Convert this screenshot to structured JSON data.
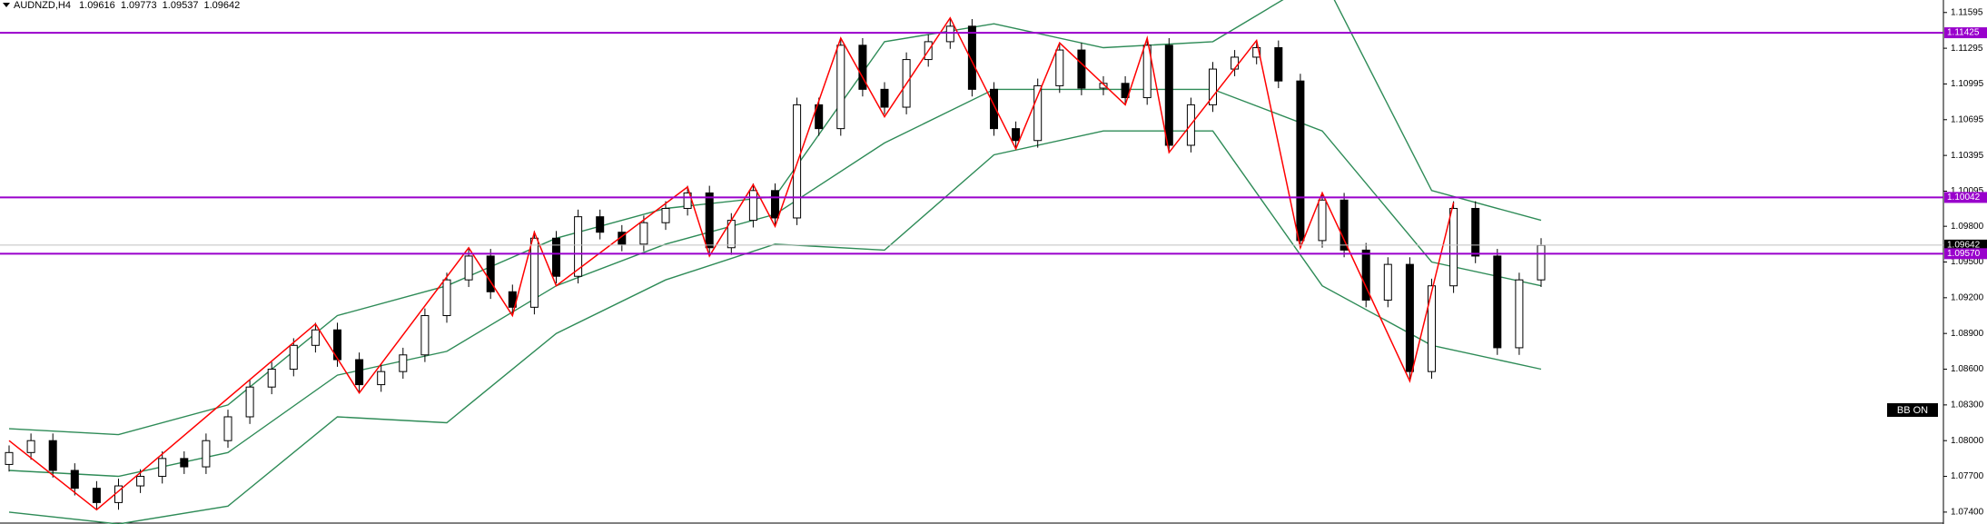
{
  "header": {
    "symbol": "AUDNZD,H4",
    "open": 1.09616,
    "high": 1.09773,
    "low": 1.09537,
    "close": 1.09642
  },
  "chart_data": {
    "type": "candlestick",
    "ylim": [
      1.073,
      1.117
    ],
    "yticks": [
      1.11595,
      1.11295,
      1.10995,
      1.10695,
      1.10395,
      1.10095,
      {
        "value": 1.098,
        "label": "1.09800"
      },
      {
        "value": 1.095,
        "label": "1.09500"
      },
      {
        "value": 1.092,
        "label": "1.09200"
      },
      {
        "value": 1.089,
        "label": "1.08900"
      },
      {
        "value": 1.086,
        "label": "1.08600"
      },
      {
        "value": 1.083,
        "label": "1.08300"
      },
      {
        "value": 1.08,
        "label": "1.08000"
      },
      {
        "value": 1.077,
        "label": "1.07700"
      },
      {
        "value": 1.074,
        "label": "1.07400"
      }
    ],
    "open": [
      1.078,
      1.079,
      1.08,
      1.0775,
      1.076,
      1.0748,
      1.0762,
      1.077,
      1.0785,
      1.0778,
      1.08,
      1.082,
      1.0845,
      1.086,
      1.088,
      1.0893,
      1.0868,
      1.0847,
      1.0858,
      1.0872,
      1.0905,
      1.0935,
      1.0955,
      1.0925,
      1.0912,
      1.097,
      1.0938,
      1.0988,
      1.0975,
      1.0965,
      1.0983,
      1.0995,
      1.1008,
      1.0962,
      1.0985,
      1.101,
      1.0987,
      1.1082,
      1.1062,
      1.1132,
      1.1095,
      1.108,
      1.112,
      1.1135,
      1.1148,
      1.1095,
      1.1062,
      1.1052,
      1.1098,
      1.1128,
      1.1096,
      1.11,
      1.1088,
      1.1132,
      1.1048,
      1.1082,
      1.1112,
      1.1122,
      1.113,
      1.1102,
      1.0968,
      1.1002,
      1.096,
      1.0918,
      1.0948,
      1.0858,
      1.093,
      1.0995,
      1.0955,
      1.0878,
      1.0935
    ],
    "high": [
      1.0796,
      1.0806,
      1.0806,
      1.0781,
      1.0766,
      1.0768,
      1.0776,
      1.0791,
      1.0791,
      1.0806,
      1.0826,
      1.0851,
      1.0866,
      1.0886,
      1.0899,
      1.0899,
      1.0874,
      1.0864,
      1.0878,
      1.0911,
      1.0941,
      1.0961,
      1.0961,
      1.0931,
      1.0976,
      1.0976,
      1.0994,
      1.0994,
      1.0981,
      1.0989,
      1.1001,
      1.1014,
      1.1014,
      1.0991,
      1.1016,
      1.1016,
      1.1088,
      1.1088,
      1.1138,
      1.1138,
      1.1101,
      1.1126,
      1.1141,
      1.1154,
      1.1154,
      1.1101,
      1.1068,
      1.1104,
      1.1134,
      1.1134,
      1.1106,
      1.1106,
      1.1138,
      1.1138,
      1.1088,
      1.1118,
      1.1128,
      1.1136,
      1.1136,
      1.1108,
      1.1008,
      1.1008,
      1.0966,
      1.0954,
      1.0954,
      1.0936,
      1.1001,
      1.1001,
      1.0961,
      1.0941,
      1.097
    ],
    "low": [
      1.0774,
      1.0784,
      1.0769,
      1.0754,
      1.0742,
      1.0742,
      1.0756,
      1.0764,
      1.0772,
      1.0772,
      1.0794,
      1.0814,
      1.0839,
      1.0854,
      1.0874,
      1.0862,
      1.0841,
      1.0841,
      1.0852,
      1.0866,
      1.0899,
      1.0929,
      1.0919,
      1.0906,
      1.0906,
      1.0932,
      1.0932,
      1.0969,
      1.0959,
      1.0959,
      1.0977,
      1.0989,
      1.0956,
      1.0956,
      1.0979,
      1.0981,
      1.0981,
      1.1056,
      1.1056,
      1.1089,
      1.1074,
      1.1074,
      1.1114,
      1.1129,
      1.1089,
      1.1056,
      1.1046,
      1.1046,
      1.1092,
      1.109,
      1.109,
      1.1082,
      1.1082,
      1.1042,
      1.1042,
      1.1076,
      1.1106,
      1.1116,
      1.1096,
      1.0962,
      1.0962,
      1.0954,
      1.0912,
      1.0912,
      1.0852,
      1.0852,
      1.0924,
      1.0949,
      1.0872,
      1.0872,
      1.0929
    ],
    "close": [
      1.079,
      1.08,
      1.0775,
      1.076,
      1.0748,
      1.0762,
      1.077,
      1.0785,
      1.0778,
      1.08,
      1.082,
      1.0845,
      1.086,
      1.088,
      1.0893,
      1.0868,
      1.0847,
      1.0858,
      1.0872,
      1.0905,
      1.0935,
      1.0955,
      1.0925,
      1.0912,
      1.097,
      1.0938,
      1.0988,
      1.0975,
      1.0965,
      1.0983,
      1.0995,
      1.1008,
      1.0962,
      1.0985,
      1.101,
      1.0987,
      1.1082,
      1.1062,
      1.1132,
      1.1095,
      1.108,
      1.112,
      1.1135,
      1.1148,
      1.1095,
      1.1062,
      1.1052,
      1.1098,
      1.1128,
      1.1096,
      1.11,
      1.1088,
      1.1132,
      1.1048,
      1.1082,
      1.1112,
      1.1122,
      1.113,
      1.1102,
      1.0968,
      1.1002,
      1.096,
      1.0918,
      1.0948,
      1.0858,
      1.093,
      1.0995,
      1.0955,
      1.0878,
      1.0935,
      1.0964
    ],
    "bands": {
      "color": "#2e8b57",
      "x": [
        0,
        5,
        10,
        15,
        20,
        25,
        30,
        35,
        40,
        45,
        50,
        55,
        60,
        65,
        70
      ],
      "upper": [
        1.081,
        1.0805,
        1.083,
        1.0905,
        1.093,
        1.097,
        1.0995,
        1.1005,
        1.1135,
        1.115,
        1.113,
        1.1135,
        1.119,
        1.101,
        1.0985
      ],
      "middle": [
        1.0775,
        1.077,
        1.079,
        1.0855,
        1.0875,
        1.093,
        1.0965,
        1.099,
        1.105,
        1.1095,
        1.1095,
        1.1095,
        1.106,
        1.095,
        1.093
      ],
      "lower": [
        1.074,
        1.073,
        1.0745,
        1.082,
        1.0815,
        1.089,
        1.0935,
        1.0965,
        1.096,
        1.104,
        1.106,
        1.106,
        1.093,
        1.088,
        1.086
      ]
    },
    "zigzag": {
      "color": "#ff0000",
      "x": [
        0,
        4,
        14,
        16,
        21,
        23,
        24,
        25,
        31,
        32,
        34,
        35,
        38,
        40,
        43,
        46,
        48,
        51,
        52,
        53,
        57,
        59,
        60,
        64,
        66
      ],
      "values": [
        1.08,
        1.0742,
        1.0898,
        1.084,
        1.0962,
        1.0905,
        1.0975,
        1.093,
        1.1013,
        1.0955,
        1.1015,
        1.098,
        1.1138,
        1.1072,
        1.1155,
        1.1045,
        1.1134,
        1.1082,
        1.1138,
        1.1042,
        1.1136,
        1.0962,
        1.1008,
        1.085,
        1.1
      ]
    },
    "levels": [
      1.11425,
      1.10042,
      {
        "value": 1.0957,
        "label": "1.09570"
      }
    ],
    "level_color": "#9900cc",
    "price": 1.09642,
    "indicator": "BB ON"
  }
}
